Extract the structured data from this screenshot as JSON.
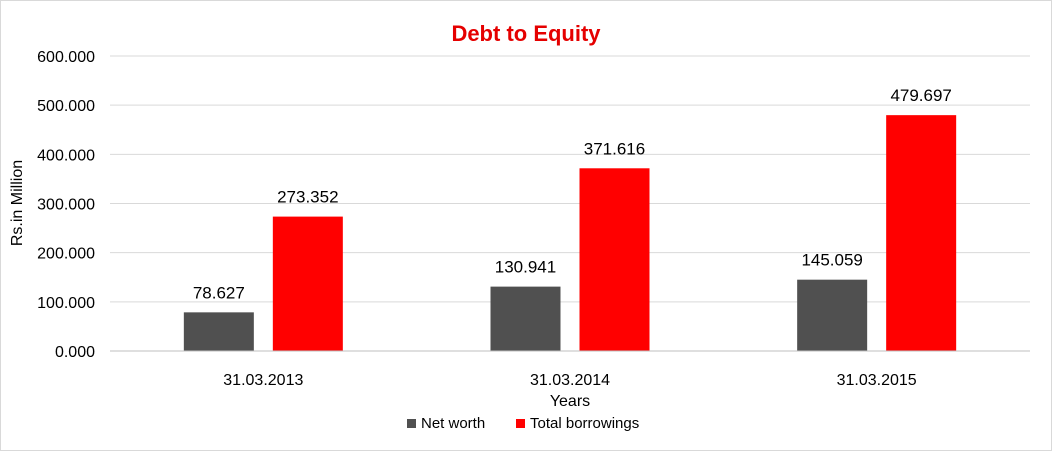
{
  "chart_data": {
    "type": "bar",
    "title": "Debt to Equity",
    "xlabel": "Years",
    "ylabel": "Rs.in Million",
    "categories": [
      "31.03.2013",
      "31.03.2014",
      "31.03.2015"
    ],
    "series": [
      {
        "name": "Net worth",
        "values": [
          78.627,
          130.941,
          145.059
        ],
        "labels": [
          "78.627",
          "130.941",
          "145.059"
        ],
        "color": "#505050"
      },
      {
        "name": "Total borrowings",
        "values": [
          273.352,
          371.616,
          479.697
        ],
        "labels": [
          "273.352",
          "371.616",
          "479.697"
        ],
        "color": "#ff0000"
      }
    ],
    "ylim": [
      0,
      600
    ],
    "yticks": [
      0,
      100,
      200,
      300,
      400,
      500,
      600
    ],
    "ytick_labels": [
      "0.000",
      "100.000",
      "200.000",
      "300.000",
      "400.000",
      "500.000",
      "600.000"
    ],
    "grid": true,
    "legend_position": "bottom",
    "title_color": "#e50000"
  }
}
